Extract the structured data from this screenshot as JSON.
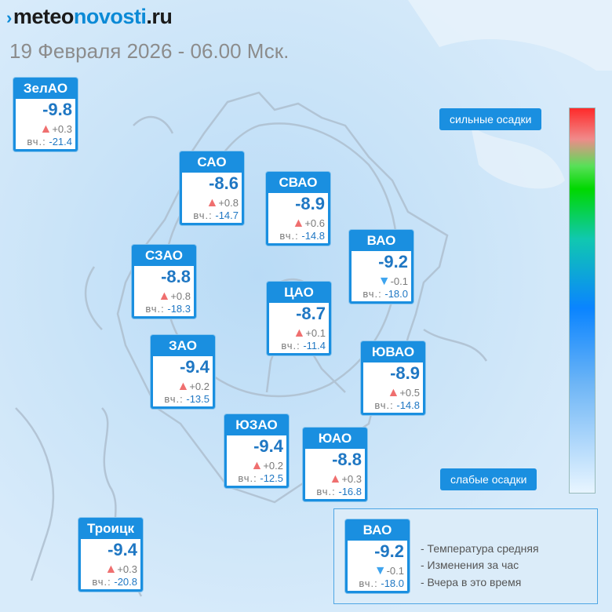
{
  "brand": {
    "mark": "›",
    "part1": "meteo",
    "part2": "novosti",
    "part3": ".ru"
  },
  "date": "19 Февраля 2026 - 06.00 Мск.",
  "yesterday_label": "вч.:",
  "districts": [
    {
      "name": "ЗелАО",
      "temp": "-9.8",
      "trend": "▲",
      "change": "+0.3",
      "yesterday": "-21.4"
    },
    {
      "name": "САО",
      "temp": "-8.6",
      "trend": "▲",
      "change": "+0.8",
      "yesterday": "-14.7"
    },
    {
      "name": "СВАО",
      "temp": "-8.9",
      "trend": "▲",
      "change": "+0.6",
      "yesterday": "-14.8"
    },
    {
      "name": "ВАО",
      "temp": "-9.2",
      "trend": "▼",
      "change": "-0.1",
      "yesterday": "-18.0"
    },
    {
      "name": "СЗАО",
      "temp": "-8.8",
      "trend": "▲",
      "change": "+0.8",
      "yesterday": "-18.3"
    },
    {
      "name": "ЦАО",
      "temp": "-8.7",
      "trend": "▲",
      "change": "+0.1",
      "yesterday": "-11.4"
    },
    {
      "name": "ЗАО",
      "temp": "-9.4",
      "trend": "▲",
      "change": "+0.2",
      "yesterday": "-13.5"
    },
    {
      "name": "ЮВАО",
      "temp": "-8.9",
      "trend": "▲",
      "change": "+0.5",
      "yesterday": "-14.8"
    },
    {
      "name": "ЮЗАО",
      "temp": "-9.4",
      "trend": "▲",
      "change": "+0.2",
      "yesterday": "-12.5"
    },
    {
      "name": "ЮАО",
      "temp": "-8.8",
      "trend": "▲",
      "change": "+0.3",
      "yesterday": "-16.8"
    },
    {
      "name": "Троицк",
      "temp": "-9.4",
      "trend": "▲",
      "change": "+0.3",
      "yesterday": "-20.8"
    }
  ],
  "precip_scale": {
    "top_label": "сильные осадки",
    "bottom_label": "слабые осадки"
  },
  "legend": {
    "sample": {
      "name": "ВАО",
      "temp": "-9.2",
      "trend": "▼",
      "change": "-0.1",
      "yesterday": "-18.0"
    },
    "lines": [
      "- Температура средняя",
      "- Изменения за час",
      "- Вчера в это время"
    ]
  },
  "colors": {
    "accent": "#1a8fe0",
    "temp_text": "#1f77c3",
    "trend_up": "#ef6f6f",
    "trend_down": "#3ea4ee"
  }
}
